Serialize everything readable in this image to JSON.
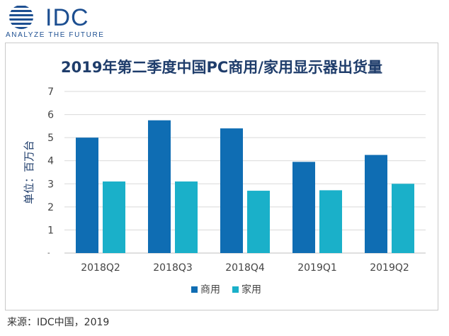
{
  "brand": {
    "name": "IDC",
    "tagline": "ANALYZE THE FUTURE"
  },
  "source": "来源：IDC中国，2019",
  "colors": {
    "commercial": "#0f6db3",
    "consumer": "#1ab0c9",
    "title": "#1f3d6b",
    "logo": "#1d4f91",
    "grid": "#d9d9d9"
  },
  "chart_data": {
    "type": "bar",
    "title": "2019年第二季度中国PC商用/家用显示器出货量",
    "ylabel": "单位：百万台",
    "xlabel": "",
    "categories": [
      "2018Q2",
      "2018Q3",
      "2018Q4",
      "2019Q1",
      "2019Q2"
    ],
    "series": [
      {
        "name": "商用",
        "values": [
          5.0,
          5.75,
          5.4,
          3.95,
          4.25
        ]
      },
      {
        "name": "家用",
        "values": [
          3.1,
          3.1,
          2.7,
          2.72,
          3.0
        ]
      }
    ],
    "ylim": [
      0,
      7
    ],
    "yticks": [
      1,
      2,
      3,
      4,
      5,
      6,
      7
    ],
    "grid": true,
    "legend": "bottom"
  }
}
